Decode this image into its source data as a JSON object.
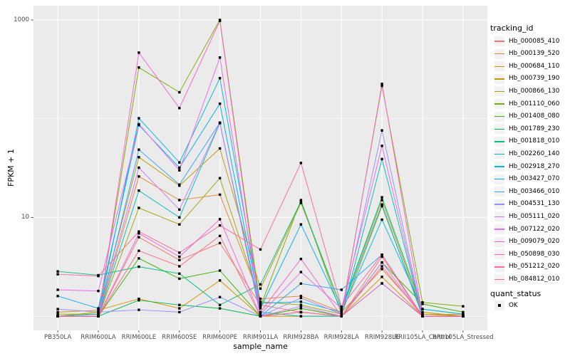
{
  "figure": {
    "background": "#FFFFFF",
    "panel_background": "#EBEBEB",
    "grid_color": "#FFFFFF",
    "axis_text_color": "#4D4D4D",
    "tick_mark_color": "#333333",
    "point_color": "#000000"
  },
  "chart_data": {
    "type": "line",
    "title": "",
    "xlabel": "sample_name",
    "ylabel": "FPKM + 1",
    "y_scale": "log10",
    "ylim": [
      0.71,
      1410
    ],
    "y_major_ticks": [
      1000,
      10
    ],
    "y_tick_labels": [
      "1000",
      "10"
    ],
    "y_minor_gridlines": [
      100,
      1
    ],
    "grid": "on",
    "legend_position": "right",
    "legend_title": "tracking_id",
    "point_shape": "filled-square",
    "categories": [
      "PB350LA",
      "RRIM600LA",
      "RRIM600LE",
      "RRIM600SE",
      "RRIM600PE",
      "RRIM901LA",
      "RRIM928BA",
      "RRIM928LA",
      "RRIM928LE",
      "RRII105LA_Control",
      "RRII105LA_Stressed"
    ],
    "series": [
      {
        "name": "Hb_000085_410",
        "color": "#F8766D",
        "values": [
          1.0,
          1.0,
          6.3,
          3.7,
          5.5,
          1.3,
          1.1,
          1.0,
          4.0,
          1.0,
          1.0
        ]
      },
      {
        "name": "Hb_000139_520",
        "color": "#EA8331",
        "values": [
          1.0,
          1.0,
          26,
          15,
          17,
          1.5,
          1.6,
          1.1,
          3.0,
          1.05,
          1.04
        ]
      },
      {
        "name": "Hb_000684_110",
        "color": "#D89000",
        "values": [
          1.1,
          1.15,
          1.5,
          1.2,
          2.3,
          1.0,
          1.0,
          1.0,
          2.5,
          1.0,
          1.0
        ]
      },
      {
        "name": "Hb_000739_190",
        "color": "#C09B00",
        "values": [
          1.0,
          1.1,
          40.7,
          21,
          50,
          1.9,
          14,
          1.2,
          15,
          1.1,
          1.0
        ]
      },
      {
        "name": "Hb_000866_130",
        "color": "#A3A500",
        "values": [
          1.0,
          1.0,
          12.5,
          8.5,
          25,
          1.4,
          1.3,
          1.05,
          13,
          1.05,
          1.0
        ]
      },
      {
        "name": "Hb_001110_060",
        "color": "#7CAE00",
        "values": [
          1.05,
          1.05,
          330,
          185,
          1000,
          1.25,
          15,
          1.05,
          215,
          1.38,
          1.26
        ]
      },
      {
        "name": "Hb_001408_080",
        "color": "#39B600",
        "values": [
          1.0,
          1.0,
          3.85,
          2.4,
          2.9,
          1.0,
          1.2,
          1.0,
          3.5,
          1.33,
          1.1
        ]
      },
      {
        "name": "Hb_001789_230",
        "color": "#00BB4E",
        "values": [
          1.0,
          1.0,
          1.45,
          1.3,
          1.2,
          1.0,
          1.1,
          1.0,
          2.15,
          1.0,
          1.0
        ]
      },
      {
        "name": "Hb_001818_010",
        "color": "#00C087",
        "values": [
          2.84,
          2.6,
          3.17,
          2.7,
          1.3,
          2.1,
          14.5,
          1.2,
          16,
          1.18,
          1.05
        ]
      },
      {
        "name": "Hb_002260_140",
        "color": "#00C0B8",
        "values": [
          1.0,
          1.0,
          18.7,
          10,
          90,
          1.1,
          1.0,
          1.0,
          39,
          1.0,
          1.0
        ]
      },
      {
        "name": "Hb_002918_270",
        "color": "#00BAE0",
        "values": [
          1.0,
          1.05,
          101,
          36,
          257,
          1.35,
          1.4,
          1.1,
          9.5,
          1.18,
          1.05
        ]
      },
      {
        "name": "Hb_003427_070",
        "color": "#00ACFC",
        "values": [
          1.6,
          1.2,
          86,
          31.9,
          142,
          1.2,
          8.5,
          1.15,
          13.5,
          1.0,
          1.0
        ]
      },
      {
        "name": "Hb_003466_010",
        "color": "#35A2FF",
        "values": [
          1.0,
          1.0,
          48.6,
          21.5,
          91,
          1.0,
          2.14,
          1.85,
          4.2,
          1.0,
          1.0
        ]
      },
      {
        "name": "Hb_004531_130",
        "color": "#9590FF",
        "values": [
          1.18,
          1.1,
          1.16,
          1.1,
          1.56,
          1.0,
          1.53,
          1.05,
          76,
          1.0,
          1.0
        ]
      },
      {
        "name": "Hb_005111_020",
        "color": "#C77CFF",
        "values": [
          1.0,
          1.0,
          31.9,
          12,
          91,
          1.0,
          1.26,
          1.0,
          3.5,
          1.0,
          1.0
        ]
      },
      {
        "name": "Hb_007122_020",
        "color": "#E76BF3",
        "values": [
          1.85,
          1.8,
          88,
          30,
          416,
          1.05,
          2.8,
          1.2,
          53,
          1.0,
          1.0
        ]
      },
      {
        "name": "Hb_009079_020",
        "color": "#FA62DB",
        "values": [
          1.0,
          1.0,
          6.9,
          4.0,
          9.6,
          1.0,
          1.1,
          1.0,
          2.15,
          1.0,
          1.0
        ]
      },
      {
        "name": "Hb_050898_030",
        "color": "#FF61C9",
        "values": [
          1.0,
          1.0,
          467,
          128,
          980,
          1.1,
          3.8,
          1.0,
          225,
          1.0,
          1.0
        ]
      },
      {
        "name": "Hb_051212_020",
        "color": "#FF68A1",
        "values": [
          2.66,
          2.55,
          7.2,
          4.4,
          8.3,
          4.74,
          35.6,
          1.25,
          4.2,
          1.0,
          1.0
        ]
      },
      {
        "name": "Hb_084812_010",
        "color": "#FF6B83",
        "values": [
          1.0,
          1.0,
          4.6,
          3.2,
          6.5,
          1.0,
          1.1,
          1.0,
          3.2,
          1.0,
          1.0
        ]
      }
    ],
    "legend2_title": "quant_status",
    "legend2_items": [
      {
        "label": "OK",
        "marker": "black-square"
      }
    ]
  }
}
